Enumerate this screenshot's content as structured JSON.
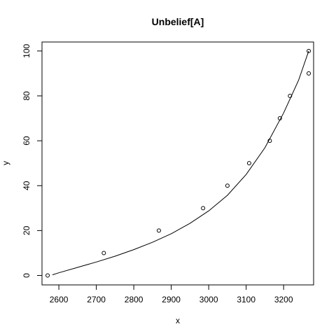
{
  "chart_data": {
    "type": "scatter",
    "title": "Unbelief[A]",
    "xlabel": "x",
    "ylabel": "y",
    "xlim": [
      2555,
      2280
    ],
    "ylim": [
      -4.2,
      104
    ],
    "x_ticks": [
      2600,
      2700,
      2800,
      2900,
      3000,
      3100,
      3200
    ],
    "y_ticks": [
      0,
      20,
      40,
      60,
      80,
      100
    ],
    "x_tick_labels": [
      "2600",
      "2700",
      "2800",
      "2900",
      "3000",
      "3100",
      "3200"
    ],
    "y_tick_labels": [
      "0",
      "20",
      "40",
      "60",
      "80",
      "100"
    ],
    "grid": false,
    "colors": {
      "points": "#000000",
      "curve": "#000000",
      "axes": "#000000"
    },
    "points": [
      {
        "x": 2570,
        "y": 0
      },
      {
        "x": 2720,
        "y": 10
      },
      {
        "x": 2867,
        "y": 20
      },
      {
        "x": 2985,
        "y": 30
      },
      {
        "x": 3050,
        "y": 40
      },
      {
        "x": 3108,
        "y": 50
      },
      {
        "x": 3163,
        "y": 60
      },
      {
        "x": 3190,
        "y": 70
      },
      {
        "x": 3217,
        "y": 80
      },
      {
        "x": 3267,
        "y": 90
      },
      {
        "x": 3267,
        "y": 100
      }
    ],
    "curve": [
      {
        "x": 2583,
        "y": 0.3
      },
      {
        "x": 2600,
        "y": 1.2
      },
      {
        "x": 2650,
        "y": 3.6
      },
      {
        "x": 2700,
        "y": 6.0
      },
      {
        "x": 2750,
        "y": 8.6
      },
      {
        "x": 2800,
        "y": 11.5
      },
      {
        "x": 2850,
        "y": 14.8
      },
      {
        "x": 2900,
        "y": 18.6
      },
      {
        "x": 2950,
        "y": 23.2
      },
      {
        "x": 3000,
        "y": 28.8
      },
      {
        "x": 3050,
        "y": 35.7
      },
      {
        "x": 3100,
        "y": 45.0
      },
      {
        "x": 3150,
        "y": 56.9
      },
      {
        "x": 3200,
        "y": 72.4
      },
      {
        "x": 3240,
        "y": 87.0
      },
      {
        "x": 3267,
        "y": 100
      }
    ]
  }
}
